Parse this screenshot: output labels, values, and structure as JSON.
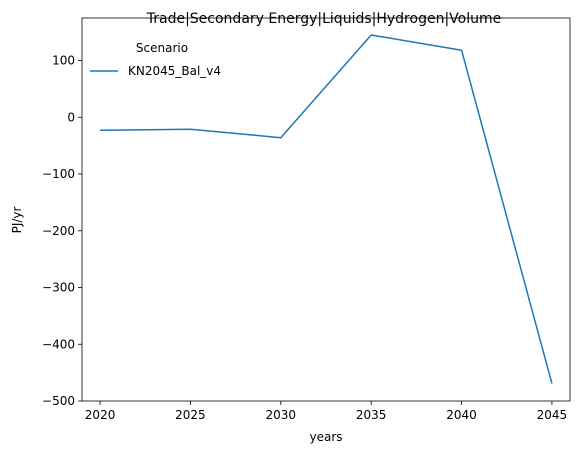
{
  "chart_data": {
    "type": "line",
    "title": "Trade|Secondary Energy|Liquids|Hydrogen|Volume",
    "xlabel": "years",
    "ylabel": "PJ/yr",
    "x": [
      2020,
      2025,
      2030,
      2035,
      2040,
      2045
    ],
    "xticks": [
      "2020",
      "2025",
      "2030",
      "2035",
      "2040",
      "2045"
    ],
    "yticks": [
      100,
      0,
      -100,
      -200,
      -300,
      -400,
      -500
    ],
    "ytick_labels": [
      "100",
      "0",
      "−100",
      "−200",
      "−300",
      "−400",
      "−500"
    ],
    "xlim": [
      2019.0,
      2046.0
    ],
    "ylim": [
      -500,
      175
    ],
    "grid": false,
    "legend": {
      "title": "Scenario",
      "placement": "top-left"
    },
    "series": [
      {
        "name": "KN2045_Bal_v4",
        "color": "#1f77b4",
        "values": [
          -23,
          -21,
          -36,
          145,
          118,
          -469
        ]
      }
    ]
  }
}
